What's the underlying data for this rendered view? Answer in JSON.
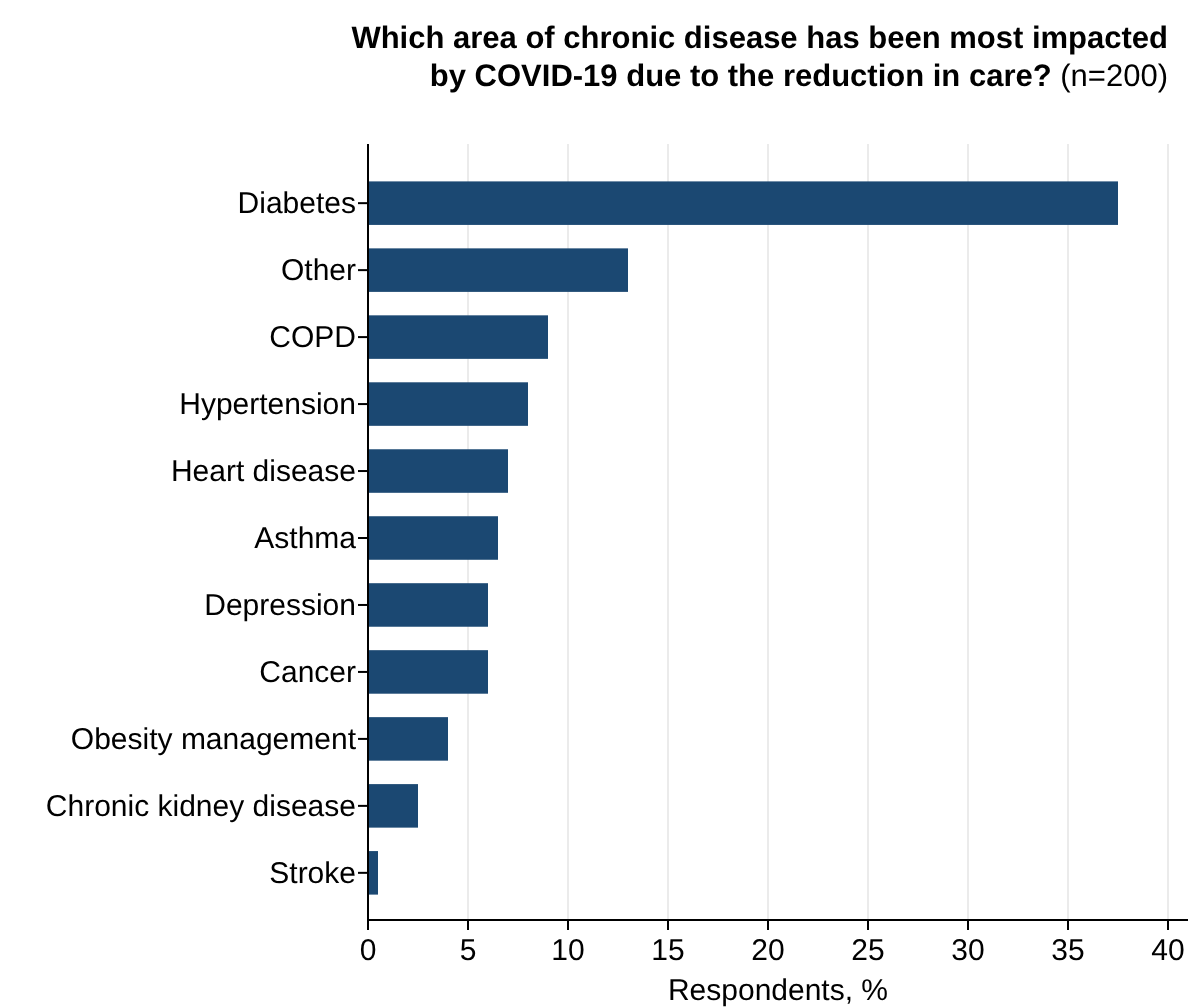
{
  "chart_data": {
    "type": "bar",
    "orientation": "horizontal",
    "title": "Which area of chronic disease has been most impacted by COVID-19 due to the reduction in care?",
    "subtitle": "(n=200)",
    "xlabel": "Respondents, %",
    "categories": [
      "Diabetes",
      "Other",
      "COPD",
      "Hypertension",
      "Heart disease",
      "Asthma",
      "Depression",
      "Cancer",
      "Obesity management",
      "Chronic kidney disease",
      "Stroke"
    ],
    "values": [
      37.5,
      13,
      9,
      8,
      7,
      6.5,
      6,
      6,
      4,
      2.5,
      0.5
    ],
    "color": "#1b4872",
    "xlim": [
      0,
      41
    ],
    "xticks": [
      0,
      5,
      10,
      15,
      20,
      25,
      30,
      35,
      40
    ],
    "grid": "x"
  }
}
